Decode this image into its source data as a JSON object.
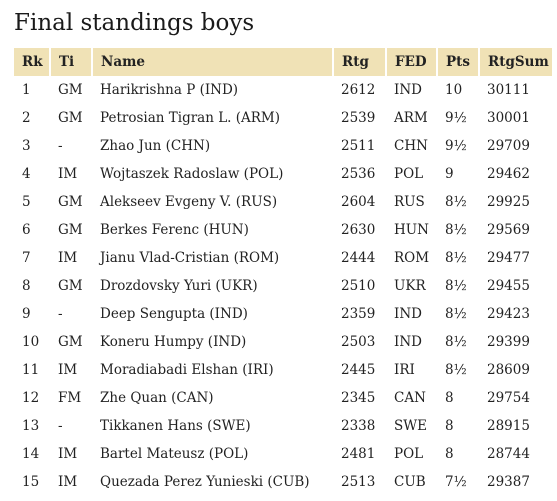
{
  "title": "Final standings boys",
  "headers": {
    "rk": "Rk",
    "ti": "Ti",
    "name": "Name",
    "rtg": "Rtg",
    "fed": "FED",
    "pts": "Pts",
    "rtgsum": "RtgSum"
  },
  "rows": [
    {
      "rk": "1",
      "ti": "GM",
      "name": "Harikrishna P (IND)",
      "rtg": "2612",
      "fed": "IND",
      "pts": "10",
      "rtgsum": "30111"
    },
    {
      "rk": "2",
      "ti": "GM",
      "name": "Petrosian Tigran L. (ARM)",
      "rtg": "2539",
      "fed": "ARM",
      "pts": "9½",
      "rtgsum": "30001"
    },
    {
      "rk": "3",
      "ti": "-",
      "name": "Zhao Jun (CHN)",
      "rtg": "2511",
      "fed": "CHN",
      "pts": "9½",
      "rtgsum": "29709"
    },
    {
      "rk": "4",
      "ti": "IM",
      "name": "Wojtaszek Radoslaw (POL)",
      "rtg": "2536",
      "fed": "POL",
      "pts": "9",
      "rtgsum": "29462"
    },
    {
      "rk": "5",
      "ti": "GM",
      "name": "Alekseev Evgeny V. (RUS)",
      "rtg": "2604",
      "fed": "RUS",
      "pts": "8½",
      "rtgsum": "29925"
    },
    {
      "rk": "6",
      "ti": "GM",
      "name": "Berkes Ferenc (HUN)",
      "rtg": "2630",
      "fed": "HUN",
      "pts": "8½",
      "rtgsum": "29569"
    },
    {
      "rk": "7",
      "ti": "IM",
      "name": "Jianu Vlad-Cristian (ROM)",
      "rtg": "2444",
      "fed": "ROM",
      "pts": "8½",
      "rtgsum": "29477"
    },
    {
      "rk": "8",
      "ti": "GM",
      "name": "Drozdovsky Yuri (UKR)",
      "rtg": "2510",
      "fed": "UKR",
      "pts": "8½",
      "rtgsum": "29455"
    },
    {
      "rk": "9",
      "ti": "-",
      "name": "Deep Sengupta (IND)",
      "rtg": "2359",
      "fed": "IND",
      "pts": "8½",
      "rtgsum": "29423"
    },
    {
      "rk": "10",
      "ti": "GM",
      "name": "Koneru Humpy (IND)",
      "rtg": "2503",
      "fed": "IND",
      "pts": "8½",
      "rtgsum": "29399"
    },
    {
      "rk": "11",
      "ti": "IM",
      "name": "Moradiabadi Elshan (IRI)",
      "rtg": "2445",
      "fed": "IRI",
      "pts": "8½",
      "rtgsum": "28609"
    },
    {
      "rk": "12",
      "ti": "FM",
      "name": "Zhe Quan (CAN)",
      "rtg": "2345",
      "fed": "CAN",
      "pts": "8",
      "rtgsum": "29754"
    },
    {
      "rk": "13",
      "ti": "-",
      "name": "Tikkanen Hans (SWE)",
      "rtg": "2338",
      "fed": "SWE",
      "pts": "8",
      "rtgsum": "28915"
    },
    {
      "rk": "14",
      "ti": "IM",
      "name": "Bartel Mateusz (POL)",
      "rtg": "2481",
      "fed": "POL",
      "pts": "8",
      "rtgsum": "28744"
    },
    {
      "rk": "15",
      "ti": "IM",
      "name": "Quezada Perez Yunieski (CUB)",
      "rtg": "2513",
      "fed": "CUB",
      "pts": "7½",
      "rtgsum": "29387"
    }
  ]
}
